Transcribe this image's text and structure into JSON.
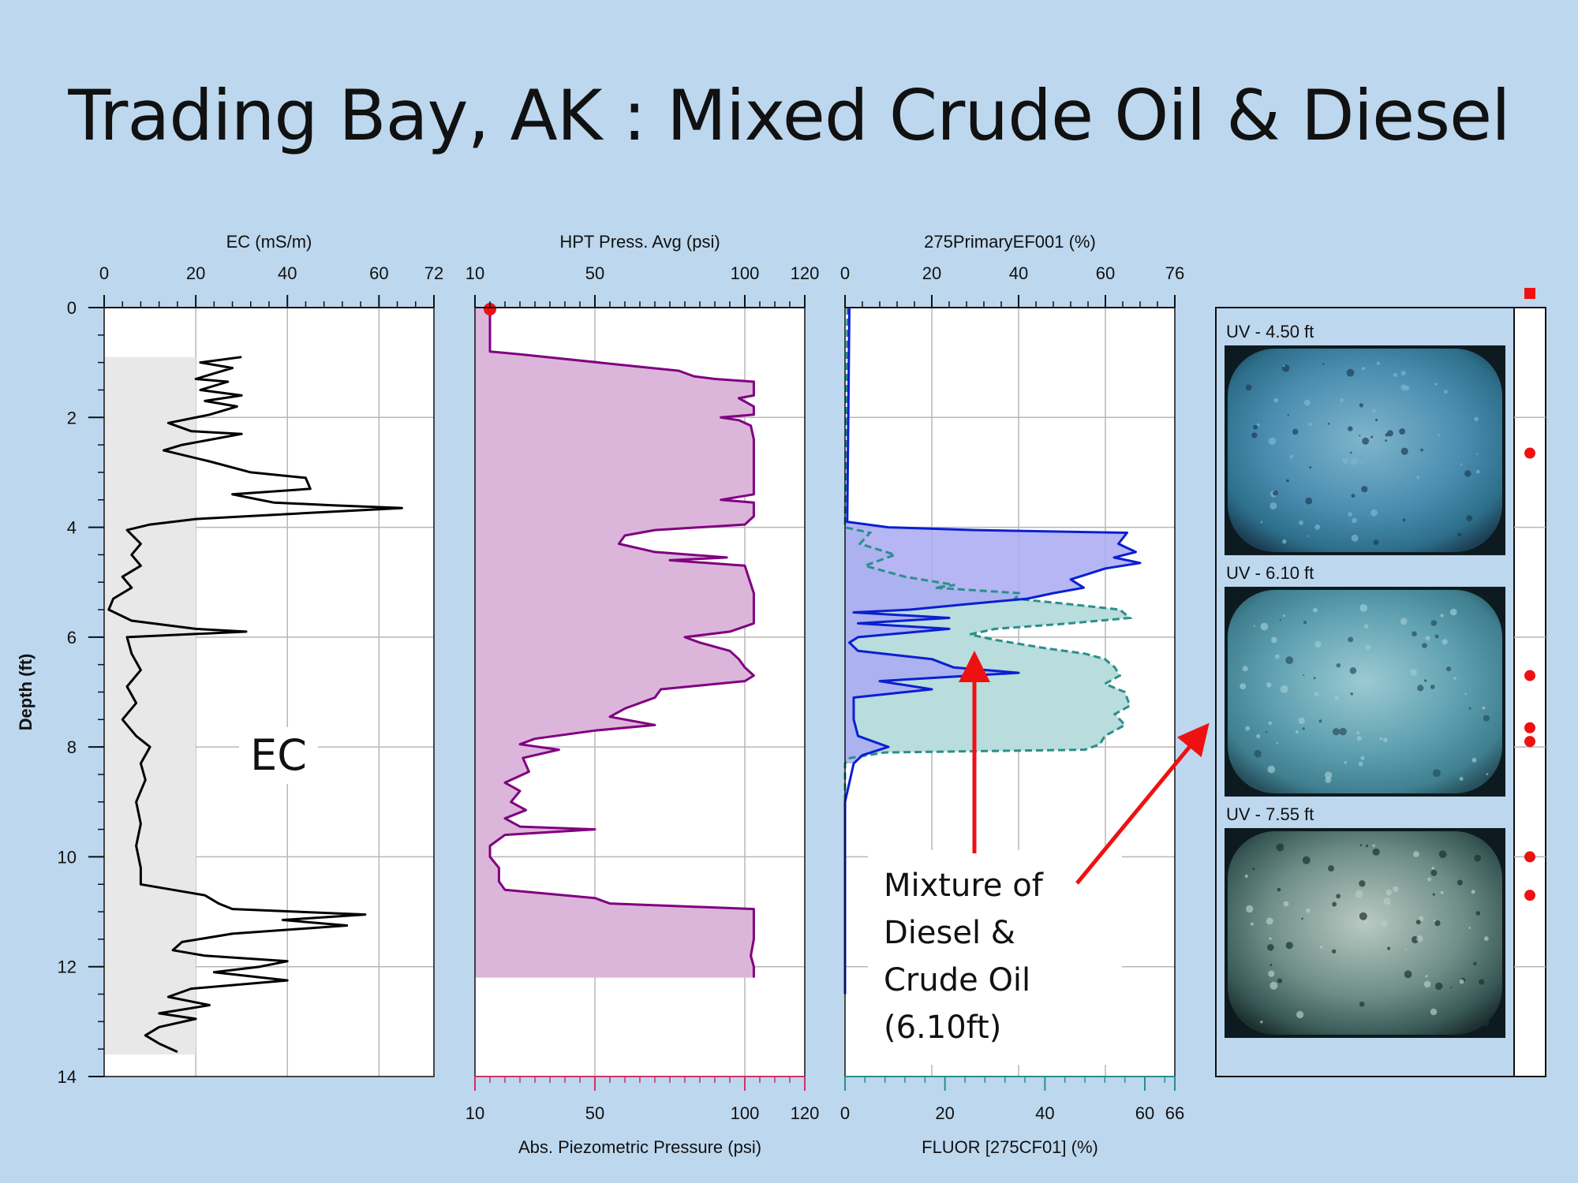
{
  "slide": {
    "title": "Trading Bay, AK : Mixed Crude Oil & Diesel"
  },
  "colors": {
    "background": "#bdd7ee",
    "ec_line": "#000000",
    "ec_fill": "#e8e8e8",
    "hpt_line": "#800080",
    "hpt_fill": "#dbb6da",
    "uvoif_line": "#0a1fd0",
    "uvoif_fill": "#a9a9f2",
    "fluor_line": "#2a8f8a",
    "fluor_fill": "#b9dcdc",
    "bottom_axis_red": "#cc3366",
    "bottom_axis_teal": "#2a8f8a",
    "marker_red": "#ee1111"
  },
  "depth_axis": {
    "label": "Depth (ft)",
    "ticks": [
      "0",
      "2",
      "4",
      "6",
      "8",
      "10",
      "12",
      "14"
    ]
  },
  "annotations": {
    "ec_label": "EC",
    "mixture_lines": [
      "Mixture of",
      "Diesel &",
      "Crude Oil",
      "(6.10ft)"
    ]
  },
  "uv_images": [
    {
      "caption": "UV - 4.50 ft",
      "palette": "blue"
    },
    {
      "caption": "UV - 6.10 ft",
      "palette": "bluegreen"
    },
    {
      "caption": "UV - 7.55 ft",
      "palette": "greengray"
    }
  ],
  "chart_data": [
    {
      "type": "line",
      "title": "EC (mS/m)",
      "xlim": [
        0,
        72
      ],
      "x_ticks": [
        "0",
        "20",
        "40",
        "60",
        "72"
      ],
      "ylim": [
        0,
        14
      ],
      "ylabel": "Depth (ft)",
      "series": [
        {
          "values_depth_x": [
            [
              0.9,
              30
            ],
            [
              1.0,
              21
            ],
            [
              1.1,
              28
            ],
            [
              1.3,
              20
            ],
            [
              1.35,
              27
            ],
            [
              1.5,
              21
            ],
            [
              1.6,
              30
            ],
            [
              1.7,
              22
            ],
            [
              1.8,
              29
            ],
            [
              1.95,
              23
            ],
            [
              2.1,
              14
            ],
            [
              2.25,
              19
            ],
            [
              2.3,
              30
            ],
            [
              2.5,
              17
            ],
            [
              2.6,
              13
            ],
            [
              2.8,
              23
            ],
            [
              3.0,
              32
            ],
            [
              3.1,
              44
            ],
            [
              3.3,
              45
            ],
            [
              3.4,
              28
            ],
            [
              3.55,
              37
            ],
            [
              3.6,
              50
            ],
            [
              3.65,
              65
            ],
            [
              3.75,
              42
            ],
            [
              3.85,
              20
            ],
            [
              3.95,
              10
            ],
            [
              4.05,
              5
            ],
            [
              4.3,
              8
            ],
            [
              4.5,
              6
            ],
            [
              4.7,
              8
            ],
            [
              4.9,
              4
            ],
            [
              5.1,
              6
            ],
            [
              5.3,
              2
            ],
            [
              5.5,
              1
            ],
            [
              5.7,
              6
            ],
            [
              5.85,
              20
            ],
            [
              5.9,
              31
            ],
            [
              6.0,
              5
            ],
            [
              6.3,
              6
            ],
            [
              6.6,
              8
            ],
            [
              6.9,
              5
            ],
            [
              7.2,
              7
            ],
            [
              7.5,
              4
            ],
            [
              7.8,
              7
            ],
            [
              8.0,
              10
            ],
            [
              8.3,
              8
            ],
            [
              8.6,
              9
            ],
            [
              9.0,
              7
            ],
            [
              9.4,
              8
            ],
            [
              9.8,
              7
            ],
            [
              10.2,
              8
            ],
            [
              10.5,
              8
            ],
            [
              10.7,
              22
            ],
            [
              10.85,
              25
            ],
            [
              10.95,
              28
            ],
            [
              11.05,
              57
            ],
            [
              11.15,
              39
            ],
            [
              11.25,
              53
            ],
            [
              11.4,
              28
            ],
            [
              11.55,
              17
            ],
            [
              11.7,
              15
            ],
            [
              11.8,
              22
            ],
            [
              11.9,
              40
            ],
            [
              12.0,
              34
            ],
            [
              12.1,
              24
            ],
            [
              12.25,
              40
            ],
            [
              12.4,
              19
            ],
            [
              12.55,
              14
            ],
            [
              12.7,
              23
            ],
            [
              12.85,
              12
            ],
            [
              12.95,
              20
            ],
            [
              13.1,
              12
            ],
            [
              13.25,
              9
            ],
            [
              13.4,
              12
            ],
            [
              13.55,
              16
            ]
          ]
        }
      ],
      "shaded_range_depth": [
        0.9,
        13.6
      ]
    },
    {
      "type": "area",
      "title": "HPT Press. Avg (psi)",
      "xlim": [
        10,
        120
      ],
      "x_ticks": [
        "10",
        "50",
        "100",
        "120"
      ],
      "ylim": [
        0,
        14
      ],
      "xlabel_bottom": "Abs. Piezometric Pressure (psi)",
      "x_ticks_bottom": [
        "10",
        "50",
        "100",
        "120"
      ],
      "series": [
        {
          "values_depth_x": [
            [
              0.0,
              15
            ],
            [
              0.8,
              15
            ],
            [
              0.85,
              25
            ],
            [
              1.05,
              60
            ],
            [
              1.15,
              78
            ],
            [
              1.25,
              83
            ],
            [
              1.3,
              90
            ],
            [
              1.35,
              103
            ],
            [
              1.6,
              103
            ],
            [
              1.65,
              98
            ],
            [
              1.8,
              103
            ],
            [
              1.95,
              103
            ],
            [
              2.0,
              92
            ],
            [
              2.05,
              98
            ],
            [
              2.15,
              102
            ],
            [
              2.4,
              103
            ],
            [
              3.4,
              103
            ],
            [
              3.5,
              92
            ],
            [
              3.55,
              103
            ],
            [
              3.8,
              103
            ],
            [
              3.95,
              100
            ],
            [
              4.05,
              70
            ],
            [
              4.15,
              60
            ],
            [
              4.3,
              58
            ],
            [
              4.45,
              70
            ],
            [
              4.55,
              94
            ],
            [
              4.6,
              75
            ],
            [
              4.7,
              100
            ],
            [
              5.2,
              103
            ],
            [
              5.5,
              103
            ],
            [
              5.75,
              103
            ],
            [
              5.9,
              95
            ],
            [
              6.0,
              80
            ],
            [
              6.1,
              85
            ],
            [
              6.25,
              95
            ],
            [
              6.4,
              98
            ],
            [
              6.55,
              100
            ],
            [
              6.7,
              103
            ],
            [
              6.8,
              100
            ],
            [
              6.95,
              72
            ],
            [
              7.1,
              70
            ],
            [
              7.3,
              60
            ],
            [
              7.45,
              55
            ],
            [
              7.6,
              70
            ],
            [
              7.7,
              50
            ],
            [
              7.85,
              30
            ],
            [
              7.95,
              25
            ],
            [
              8.05,
              38
            ],
            [
              8.2,
              26
            ],
            [
              8.45,
              28
            ],
            [
              8.65,
              20
            ],
            [
              8.8,
              25
            ],
            [
              9.0,
              22
            ],
            [
              9.15,
              27
            ],
            [
              9.3,
              20
            ],
            [
              9.45,
              25
            ],
            [
              9.5,
              50
            ],
            [
              9.6,
              20
            ],
            [
              9.8,
              15
            ],
            [
              10.0,
              15
            ],
            [
              10.2,
              18
            ],
            [
              10.45,
              18
            ],
            [
              10.6,
              20
            ],
            [
              10.75,
              50
            ],
            [
              10.85,
              55
            ],
            [
              10.95,
              103
            ],
            [
              11.5,
              103
            ],
            [
              11.8,
              102
            ],
            [
              12.0,
              103
            ],
            [
              12.2,
              103
            ]
          ]
        }
      ]
    },
    {
      "type": "area",
      "title": "275PrimaryEF001 (%)",
      "xlim": [
        0,
        76
      ],
      "x_ticks": [
        "0",
        "20",
        "40",
        "60",
        "76"
      ],
      "ylim": [
        0,
        14
      ],
      "xlabel_bottom": "FLUOR [275CF01] (%)",
      "x_ticks_bottom": [
        "0",
        "20",
        "40",
        "60",
        "66"
      ],
      "xlim_bottom": [
        0,
        66
      ],
      "series": [
        {
          "name": "275PrimaryEF001 (%)",
          "values_depth_x": [
            [
              0.0,
              1
            ],
            [
              3.9,
              0.5
            ],
            [
              4.0,
              10
            ],
            [
              4.05,
              30
            ],
            [
              4.1,
              65
            ],
            [
              4.3,
              63
            ],
            [
              4.45,
              67
            ],
            [
              4.55,
              62
            ],
            [
              4.65,
              68
            ],
            [
              4.75,
              60
            ],
            [
              4.85,
              56
            ],
            [
              4.95,
              52
            ],
            [
              5.1,
              55
            ],
            [
              5.2,
              48
            ],
            [
              5.3,
              42
            ],
            [
              5.4,
              28
            ],
            [
              5.5,
              15
            ],
            [
              5.55,
              2
            ],
            [
              5.65,
              24
            ],
            [
              5.75,
              3
            ],
            [
              5.85,
              24
            ],
            [
              6.0,
              3
            ],
            [
              6.1,
              1
            ],
            [
              6.25,
              3
            ],
            [
              6.4,
              20
            ],
            [
              6.55,
              25
            ],
            [
              6.65,
              40
            ],
            [
              6.8,
              8
            ],
            [
              6.95,
              20
            ],
            [
              7.1,
              2
            ],
            [
              7.5,
              2
            ],
            [
              7.8,
              3
            ],
            [
              8.0,
              10
            ],
            [
              8.15,
              4
            ],
            [
              8.3,
              2
            ],
            [
              9.0,
              0
            ],
            [
              12.5,
              0
            ]
          ]
        },
        {
          "name": "FLUOR [275CF01] (%)",
          "values_depth_x": [
            [
              0.0,
              0.5
            ],
            [
              4.0,
              0
            ],
            [
              4.1,
              5
            ],
            [
              4.3,
              3
            ],
            [
              4.5,
              10
            ],
            [
              4.7,
              4
            ],
            [
              4.9,
              12
            ],
            [
              5.05,
              22
            ],
            [
              5.1,
              18
            ],
            [
              5.2,
              35
            ],
            [
              5.3,
              34
            ],
            [
              5.4,
              45
            ],
            [
              5.5,
              55
            ],
            [
              5.65,
              57
            ],
            [
              5.75,
              45
            ],
            [
              5.85,
              30
            ],
            [
              5.95,
              25
            ],
            [
              6.05,
              30
            ],
            [
              6.2,
              40
            ],
            [
              6.3,
              48
            ],
            [
              6.4,
              52
            ],
            [
              6.55,
              54
            ],
            [
              6.7,
              55
            ],
            [
              6.85,
              52
            ],
            [
              7.0,
              56
            ],
            [
              7.25,
              57
            ],
            [
              7.4,
              54
            ],
            [
              7.6,
              56
            ],
            [
              7.8,
              52
            ],
            [
              7.95,
              51
            ],
            [
              8.05,
              48
            ],
            [
              8.1,
              8
            ],
            [
              8.2,
              1
            ],
            [
              8.3,
              0
            ],
            [
              12.5,
              0
            ]
          ]
        }
      ]
    }
  ],
  "side_markers_depth": [
    2.65,
    6.7,
    7.65,
    7.9,
    10.0,
    10.7
  ]
}
